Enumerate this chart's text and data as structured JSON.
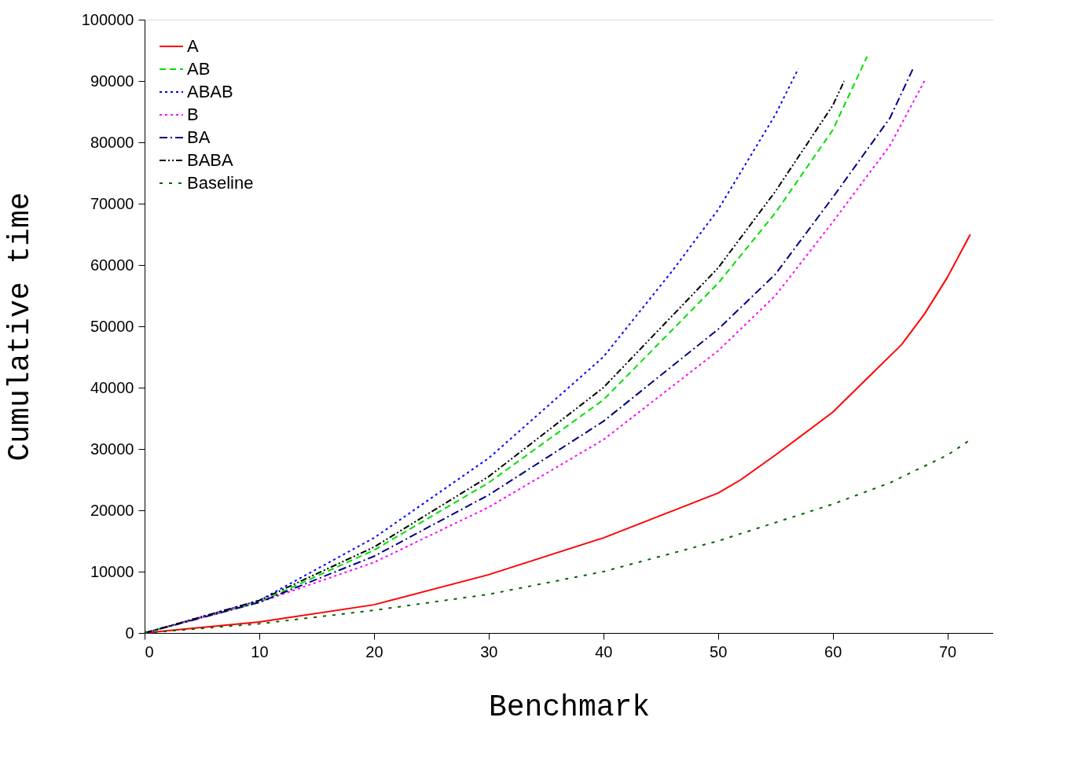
{
  "chart_data": {
    "type": "line",
    "xlabel": "Benchmark",
    "ylabel": "Cumulative time",
    "xlim": [
      0,
      74
    ],
    "xticks": [
      0,
      10,
      20,
      30,
      40,
      50,
      60,
      70
    ],
    "ylim": [
      0,
      100000
    ],
    "yticks": [
      0,
      10000,
      20000,
      30000,
      40000,
      50000,
      60000,
      70000,
      80000,
      90000,
      100000
    ],
    "grid": false,
    "legend": "top left",
    "marker": "none",
    "series": [
      {
        "name": "A",
        "color": "#ff0000",
        "line_style": "solid",
        "x": [
          0,
          10,
          20,
          30,
          40,
          50,
          52,
          55,
          60,
          63,
          66,
          68,
          70,
          72
        ],
        "values": [
          0,
          1800,
          4600,
          9500,
          15500,
          22800,
          25000,
          29000,
          36000,
          41500,
          47000,
          52000,
          58000,
          65000
        ]
      },
      {
        "name": "AB",
        "color": "#00e000",
        "line_style": "dashed",
        "x": [
          0,
          10,
          20,
          30,
          40,
          50,
          55,
          60,
          63
        ],
        "values": [
          0,
          5000,
          13500,
          24500,
          38000,
          57000,
          68500,
          82000,
          94000
        ]
      },
      {
        "name": "ABAB",
        "color": "#0000ff",
        "line_style": "dotted",
        "x": [
          0,
          10,
          20,
          30,
          40,
          46,
          50,
          55,
          57
        ],
        "values": [
          0,
          5300,
          15500,
          28500,
          45000,
          59000,
          69000,
          84500,
          92000
        ]
      },
      {
        "name": "B",
        "color": "#ff00ff",
        "line_style": "dotted",
        "x": [
          0,
          10,
          20,
          30,
          40,
          50,
          55,
          60,
          65,
          68
        ],
        "values": [
          0,
          5000,
          11500,
          20500,
          31500,
          46000,
          55000,
          67000,
          79500,
          90000
        ]
      },
      {
        "name": "BA",
        "color": "#000080",
        "line_style": "dashdot",
        "x": [
          0,
          10,
          20,
          30,
          40,
          50,
          55,
          60,
          65,
          67
        ],
        "values": [
          0,
          5000,
          12500,
          22500,
          34500,
          49500,
          58500,
          71000,
          84000,
          92000
        ]
      },
      {
        "name": "BABA",
        "color": "#000000",
        "line_style": "dashdotdot",
        "x": [
          0,
          10,
          20,
          30,
          40,
          50,
          55,
          60,
          61
        ],
        "values": [
          0,
          5300,
          14000,
          25500,
          40000,
          59500,
          72000,
          86000,
          90000
        ]
      },
      {
        "name": "Baseline",
        "color": "#006400",
        "line_style": "dashed_sparse",
        "x": [
          0,
          10,
          20,
          30,
          40,
          50,
          60,
          65,
          70,
          72
        ],
        "values": [
          0,
          1500,
          3700,
          6300,
          10000,
          15000,
          21000,
          24500,
          29000,
          31500
        ]
      }
    ]
  }
}
